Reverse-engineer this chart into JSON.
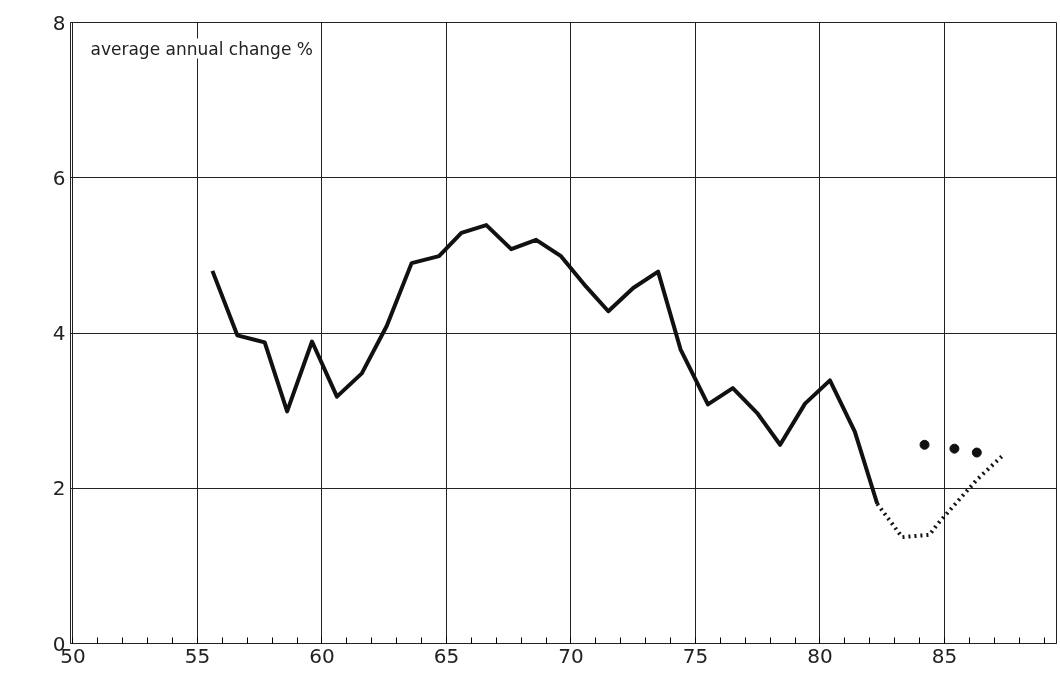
{
  "chart_data": {
    "type": "line",
    "annotations": [
      "average annual change %"
    ],
    "xlim": [
      49.9,
      89.5
    ],
    "ylim": [
      0,
      8
    ],
    "xticks": [
      {
        "value": 50,
        "label": "50"
      },
      {
        "value": 51,
        "label": null
      },
      {
        "value": 52,
        "label": null
      },
      {
        "value": 53,
        "label": null
      },
      {
        "value": 54,
        "label": null
      },
      {
        "value": 55,
        "label": "55"
      },
      {
        "value": 56,
        "label": null
      },
      {
        "value": 57,
        "label": null
      },
      {
        "value": 58,
        "label": null
      },
      {
        "value": 59,
        "label": null
      },
      {
        "value": 60,
        "label": "60"
      },
      {
        "value": 61,
        "label": null
      },
      {
        "value": 62,
        "label": null
      },
      {
        "value": 63,
        "label": null
      },
      {
        "value": 64,
        "label": null
      },
      {
        "value": 65,
        "label": "65"
      },
      {
        "value": 66,
        "label": null
      },
      {
        "value": 67,
        "label": null
      },
      {
        "value": 68,
        "label": null
      },
      {
        "value": 69,
        "label": null
      },
      {
        "value": 70,
        "label": "70"
      },
      {
        "value": 71,
        "label": null
      },
      {
        "value": 72,
        "label": null
      },
      {
        "value": 73,
        "label": null
      },
      {
        "value": 74,
        "label": null
      },
      {
        "value": 75,
        "label": "75"
      },
      {
        "value": 76,
        "label": null
      },
      {
        "value": 77,
        "label": null
      },
      {
        "value": 78,
        "label": null
      },
      {
        "value": 79,
        "label": null
      },
      {
        "value": 80,
        "label": "80"
      },
      {
        "value": 81,
        "label": null
      },
      {
        "value": 82,
        "label": null
      },
      {
        "value": 83,
        "label": null
      },
      {
        "value": 84,
        "label": null
      },
      {
        "value": 85,
        "label": "85"
      },
      {
        "value": 86,
        "label": null
      },
      {
        "value": 87,
        "label": null
      },
      {
        "value": 88,
        "label": null
      },
      {
        "value": 89,
        "label": null
      }
    ],
    "yticks": [
      0,
      2,
      4,
      6,
      8
    ],
    "grid": true,
    "series": [
      {
        "color": "#111111",
        "line_style": "solid",
        "x": [
          55.6,
          56.6,
          57.7,
          58.6,
          59.6,
          60.6,
          61.6,
          62.6,
          63.6,
          64.7,
          65.6,
          66.6,
          67.6,
          68.6,
          69.6,
          70.6,
          71.5,
          72.5,
          73.5,
          74.4,
          75.5,
          76.5,
          77.5,
          78.4,
          79.4,
          80.4,
          81.4,
          82.3
        ],
        "values": [
          4.8,
          3.97,
          3.88,
          2.99,
          3.89,
          3.18,
          3.48,
          4.09,
          4.9,
          4.99,
          5.29,
          5.39,
          5.08,
          5.2,
          4.99,
          4.6,
          4.28,
          4.58,
          4.79,
          3.79,
          3.08,
          3.29,
          2.96,
          2.56,
          3.09,
          3.39,
          2.73,
          1.8
        ]
      },
      {
        "color": "#111111",
        "line_style": "dotted",
        "x": [
          82.3,
          83.3,
          84.4,
          84.7,
          86.3,
          87.3
        ],
        "values": [
          1.8,
          1.37,
          1.4,
          1.53,
          2.11,
          2.41
        ]
      },
      {
        "type": "scatter",
        "color": "#111111",
        "marker": "circle",
        "x": [
          84.2,
          85.4,
          86.3
        ],
        "values": [
          2.56,
          2.51,
          2.46
        ]
      }
    ]
  }
}
